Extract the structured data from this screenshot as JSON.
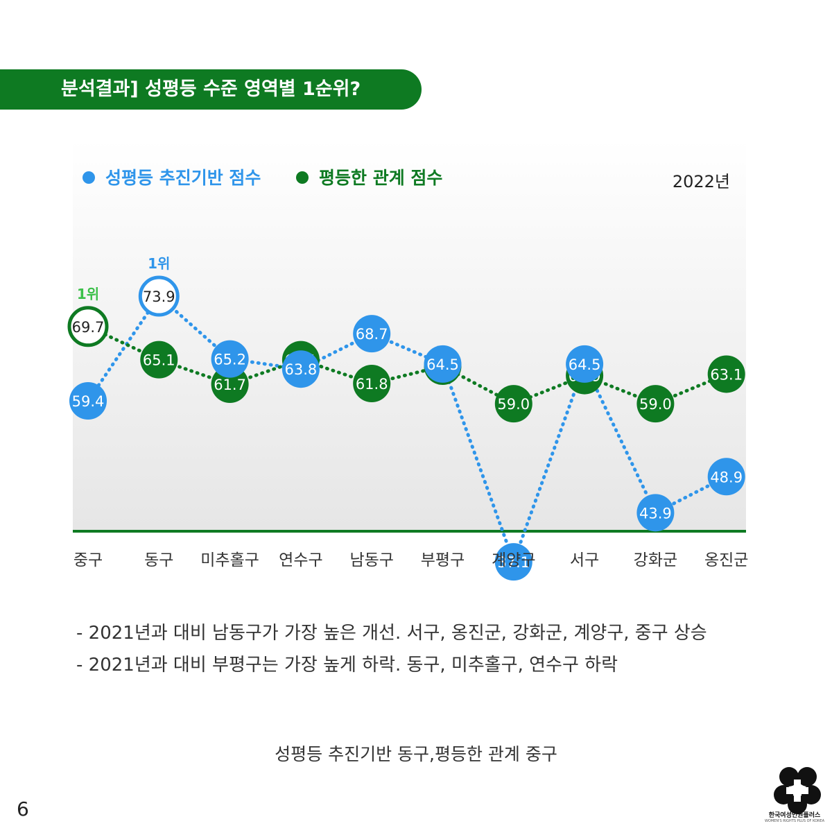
{
  "header": {
    "title": "분석결과] 성평등 수준 영역별 1순위?"
  },
  "chart_data": {
    "type": "line",
    "year_label": "2022년",
    "categories": [
      "중구",
      "동구",
      "미추홀구",
      "연수구",
      "남동구",
      "부평구",
      "계양구",
      "서구",
      "강화군",
      "옹진군"
    ],
    "series": [
      {
        "name": "성평등 추진기반 점수",
        "color": "#2f95ea",
        "values": [
          59.4,
          73.9,
          65.2,
          63.8,
          68.7,
          64.5,
          37.1,
          64.5,
          43.9,
          48.9
        ],
        "top_index": 1,
        "top_label": "1위"
      },
      {
        "name": "평등한 관계 점수",
        "color": "#0e7a22",
        "values": [
          69.7,
          65.1,
          61.7,
          65.1,
          61.8,
          64.2,
          59.0,
          62.9,
          59.0,
          63.1
        ],
        "top_index": 0,
        "top_label": "1위"
      }
    ]
  },
  "notes": [
    "- 2021년과 대비 남동구가 가장 높은 개선. 서구, 옹진군, 강화군, 계양구, 중구 상승",
    "- 2021년과 대비 부평구는 가장 높게 하락. 동구, 미추홀구, 연수구 하락"
  ],
  "summary": "성평등 추진기반 동구,평등한 관계 중구",
  "footer": {
    "page_number": "6",
    "logo_text": "한국여성인권플러스",
    "logo_subtext": "WOMEN'S RIGHTS PLUS OF KOREA"
  }
}
